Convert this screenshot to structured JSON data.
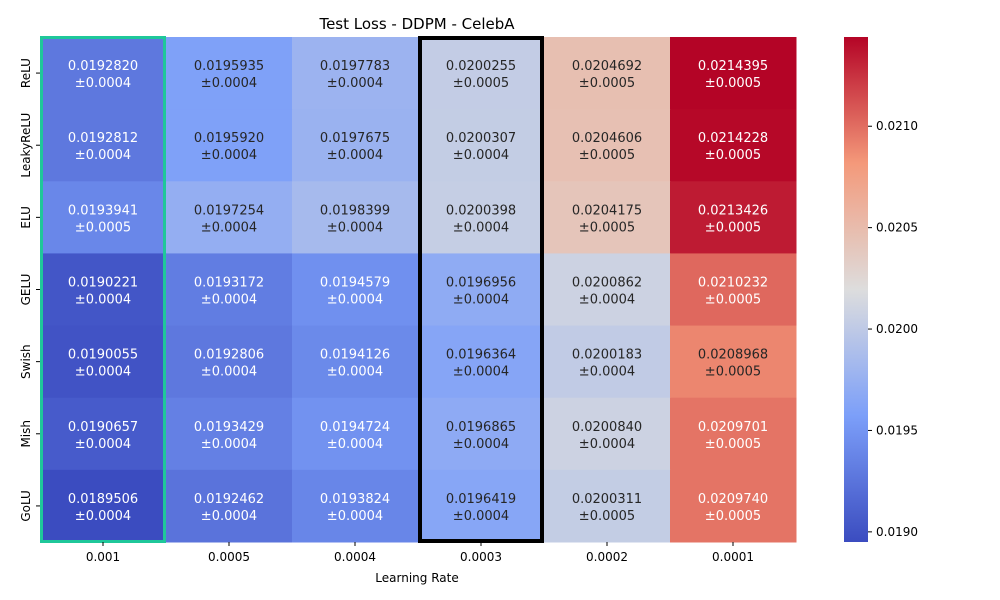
{
  "chart_data": {
    "type": "heatmap",
    "title": "Test Loss - DDPM - CelebA",
    "xlabel": "Learning Rate",
    "ylabel": "",
    "x_categories": [
      "0.001",
      "0.0005",
      "0.0004",
      "0.0003",
      "0.0002",
      "0.0001"
    ],
    "y_categories": [
      "ReLU",
      "LeakyReLU",
      "ELU",
      "GELU",
      "Swish",
      "Mish",
      "GoLU"
    ],
    "values": [
      [
        0.019282,
        0.0195935,
        0.0197783,
        0.0200255,
        0.0204692,
        0.0214395
      ],
      [
        0.0192812,
        0.019592,
        0.0197675,
        0.0200307,
        0.0204606,
        0.0214228
      ],
      [
        0.0193941,
        0.0197254,
        0.0198399,
        0.0200398,
        0.0204175,
        0.0213426
      ],
      [
        0.0190221,
        0.0193172,
        0.0194579,
        0.0196956,
        0.0200862,
        0.0210232
      ],
      [
        0.0190055,
        0.0192806,
        0.0194126,
        0.0196364,
        0.0200183,
        0.0208968
      ],
      [
        0.0190657,
        0.0193429,
        0.0194724,
        0.0196865,
        0.020084,
        0.0209701
      ],
      [
        0.0189506,
        0.0192462,
        0.0193824,
        0.0196419,
        0.0200311,
        0.020974
      ]
    ],
    "value_labels": [
      [
        "0.0192820",
        "0.0195935",
        "0.0197783",
        "0.0200255",
        "0.0204692",
        "0.0214395"
      ],
      [
        "0.0192812",
        "0.0195920",
        "0.0197675",
        "0.0200307",
        "0.0204606",
        "0.0214228"
      ],
      [
        "0.0193941",
        "0.0197254",
        "0.0198399",
        "0.0200398",
        "0.0204175",
        "0.0213426"
      ],
      [
        "0.0190221",
        "0.0193172",
        "0.0194579",
        "0.0196956",
        "0.0200862",
        "0.0210232"
      ],
      [
        "0.0190055",
        "0.0192806",
        "0.0194126",
        "0.0196364",
        "0.0200183",
        "0.0208968"
      ],
      [
        "0.0190657",
        "0.0193429",
        "0.0194724",
        "0.0196865",
        "0.0200840",
        "0.0209701"
      ],
      [
        "0.0189506",
        "0.0192462",
        "0.0193824",
        "0.0196419",
        "0.0200311",
        "0.0209740"
      ]
    ],
    "errors": [
      [
        "±0.0004",
        "±0.0004",
        "±0.0004",
        "±0.0005",
        "±0.0005",
        "±0.0005"
      ],
      [
        "±0.0004",
        "±0.0004",
        "±0.0004",
        "±0.0004",
        "±0.0005",
        "±0.0005"
      ],
      [
        "±0.0005",
        "±0.0004",
        "±0.0004",
        "±0.0004",
        "±0.0005",
        "±0.0005"
      ],
      [
        "±0.0004",
        "±0.0004",
        "±0.0004",
        "±0.0004",
        "±0.0004",
        "±0.0005"
      ],
      [
        "±0.0004",
        "±0.0004",
        "±0.0004",
        "±0.0004",
        "±0.0004",
        "±0.0005"
      ],
      [
        "±0.0004",
        "±0.0004",
        "±0.0004",
        "±0.0004",
        "±0.0004",
        "±0.0005"
      ],
      [
        "±0.0004",
        "±0.0004",
        "±0.0004",
        "±0.0004",
        "±0.0005",
        "±0.0005"
      ]
    ],
    "colormap": "coolwarm",
    "color_range": [
      0.01895,
      0.02144
    ],
    "colorbar_ticks": [
      0.019,
      0.0195,
      0.02,
      0.0205,
      0.021
    ],
    "colorbar_tick_labels": [
      "0.0190",
      "0.0195",
      "0.0200",
      "0.0205",
      "0.0210"
    ],
    "highlight_column": {
      "category": "0.001",
      "color": "#1fc79a"
    },
    "highlight_column_2": {
      "category": "0.0003",
      "color": "#000000"
    }
  }
}
